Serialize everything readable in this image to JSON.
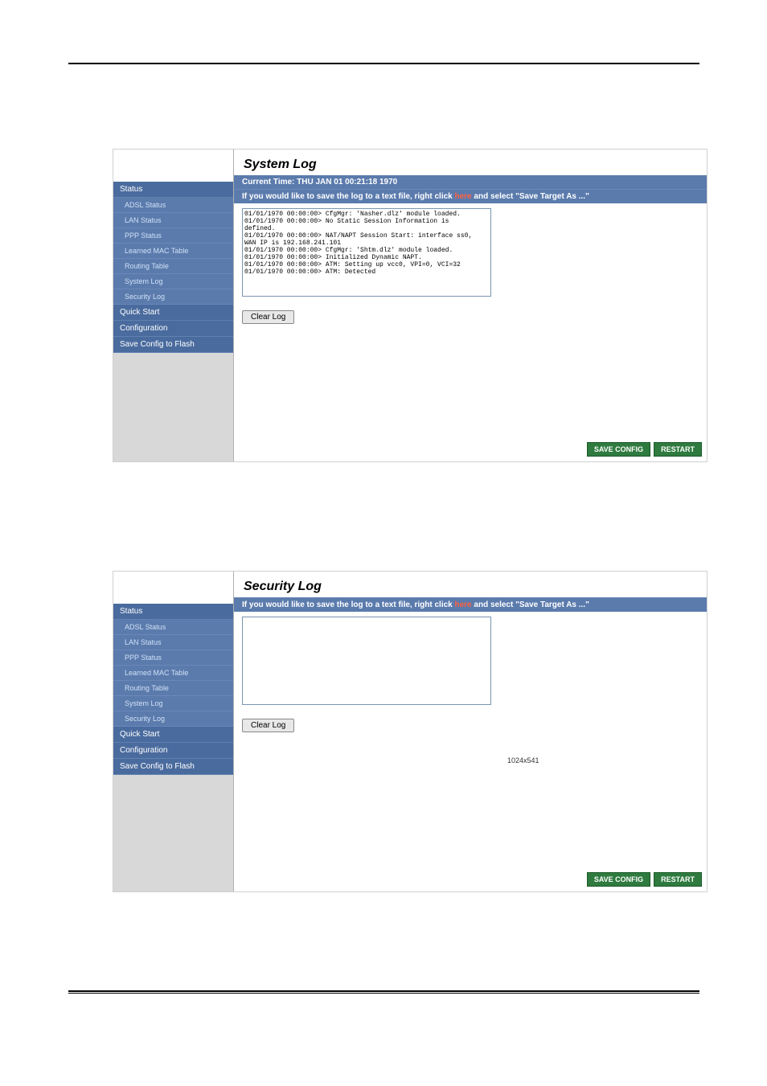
{
  "ui_colors": {
    "sidebar_bg": "#d8d8d8",
    "nav_header_bg": "#4a6b9e",
    "nav_item_bg": "#5b7bad",
    "nav_item_text": "#cfe0f5",
    "panel_bar_bg": "#5b7bad",
    "here_link_color": "#ff6040",
    "footer_btn_bg": "#2f7a3f"
  },
  "sidebar": {
    "header_status": "Status",
    "items": [
      "ADSL Status",
      "LAN Status",
      "PPP Status",
      "Learned MAC Table",
      "Routing Table",
      "System Log",
      "Security Log"
    ],
    "header_quick": "Quick Start",
    "header_config": "Configuration",
    "header_save": "Save Config to Flash"
  },
  "syslog": {
    "title": "System Log",
    "current_time": "Current Time: THU JAN 01 00:21:18 1970",
    "save_hint_pre": "If you would like to save the log to a text file, right click ",
    "save_hint_here": "here",
    "save_hint_post": " and select \"Save Target As ...\"",
    "log_lines": "01/01/1970 00:00:00> CfgMgr: 'Nasher.dlz' module loaded.\n01/01/1970 00:00:00> No Static Session Information is\ndefined.\n01/01/1970 00:00:00> NAT/NAPT Session Start: interface ss0,\nWAN IP is 192.168.241.101\n01/01/1970 00:00:00> CfgMgr: 'Shtm.dlz' module loaded.\n01/01/1970 00:00:00> Initialized Dynamic NAPT.\n01/01/1970 00:00:00> ATM: Setting up vcc0, VPI=0, VCI=32\n01/01/1970 00:00:00> ATM: Detected",
    "clear_label": "Clear Log"
  },
  "seclog": {
    "title": "Security Log",
    "save_hint_pre": "If you would like to save the log to a text file, right click ",
    "save_hint_here": "here",
    "save_hint_post": " and select \"Save Target As ...\"",
    "log_lines": "",
    "clear_label": "Clear Log",
    "dims_text": "1024x541"
  },
  "footer": {
    "save_config": "SAVE CONFIG",
    "restart": "RESTART"
  }
}
